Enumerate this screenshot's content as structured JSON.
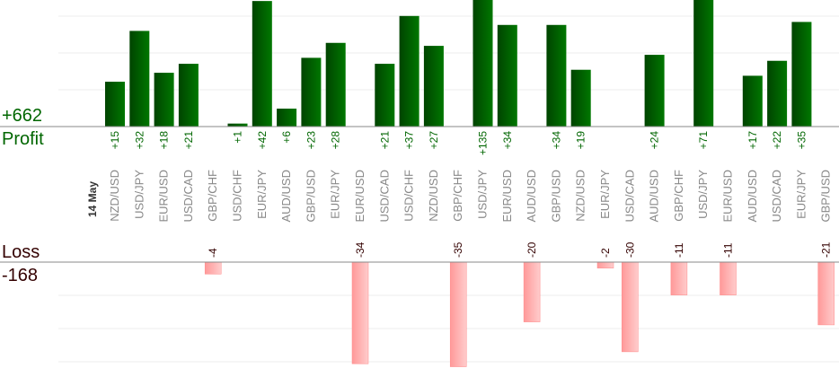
{
  "summary": {
    "total_profit": "+662",
    "profit_label": "Profit",
    "loss_label": "Loss",
    "total_loss": "-168"
  },
  "chart_data": {
    "type": "bar",
    "date_label": "14 May",
    "categories": [
      "NZD/USD",
      "USD/JPY",
      "EUR/USD",
      "USD/CAD",
      "GBP/CHF",
      "USD/CHF",
      "EUR/JPY",
      "AUD/USD",
      "GBP/USD",
      "EUR/JPY",
      "EUR/USD",
      "USD/CAD",
      "USD/CHF",
      "NZD/USD",
      "GBP/CHF",
      "USD/JPY",
      "EUR/USD",
      "AUD/USD",
      "GBP/USD",
      "NZD/USD",
      "EUR/JPY",
      "USD/CAD",
      "AUD/USD",
      "GBP/CHF",
      "USD/JPY",
      "EUR/USD",
      "AUD/USD",
      "USD/CAD",
      "EUR/JPY",
      "GBP/USD"
    ],
    "series": [
      {
        "values": [
          15,
          32,
          18,
          21,
          null,
          1,
          42,
          6,
          23,
          28,
          null,
          21,
          37,
          27,
          null,
          135,
          34,
          null,
          34,
          19,
          null,
          null,
          24,
          null,
          71,
          null,
          17,
          22,
          35,
          null
        ]
      },
      {
        "values": [
          null,
          null,
          null,
          null,
          -4,
          null,
          null,
          null,
          null,
          null,
          -34,
          null,
          null,
          null,
          -35,
          null,
          null,
          -20,
          null,
          null,
          -2,
          -30,
          null,
          -11,
          null,
          -11,
          null,
          null,
          null,
          -21
        ]
      }
    ],
    "profit_labels": [
      "+15",
      "+32",
      "+18",
      "+21",
      "",
      "+1",
      "+42",
      "+6",
      "+23",
      "+28",
      "",
      "+21",
      "+37",
      "+27",
      "",
      "+135",
      "+34",
      "",
      "+34",
      "+19",
      "",
      "",
      "+24",
      "",
      "+71",
      "",
      "+17",
      "+22",
      "+35",
      ""
    ],
    "loss_labels": [
      "",
      "",
      "",
      "",
      "-4",
      "",
      "",
      "",
      "",
      "",
      "-34",
      "",
      "",
      "",
      "-35",
      "",
      "",
      "-20",
      "",
      "",
      "-2",
      "-30",
      "",
      "-11",
      "",
      "-11",
      "",
      "",
      "",
      "-21"
    ],
    "colors": {
      "profit": "#006600",
      "loss": "#ffaaaa",
      "axis": "#888888",
      "grid": "#eeeeee",
      "category_text": "#888888"
    }
  }
}
